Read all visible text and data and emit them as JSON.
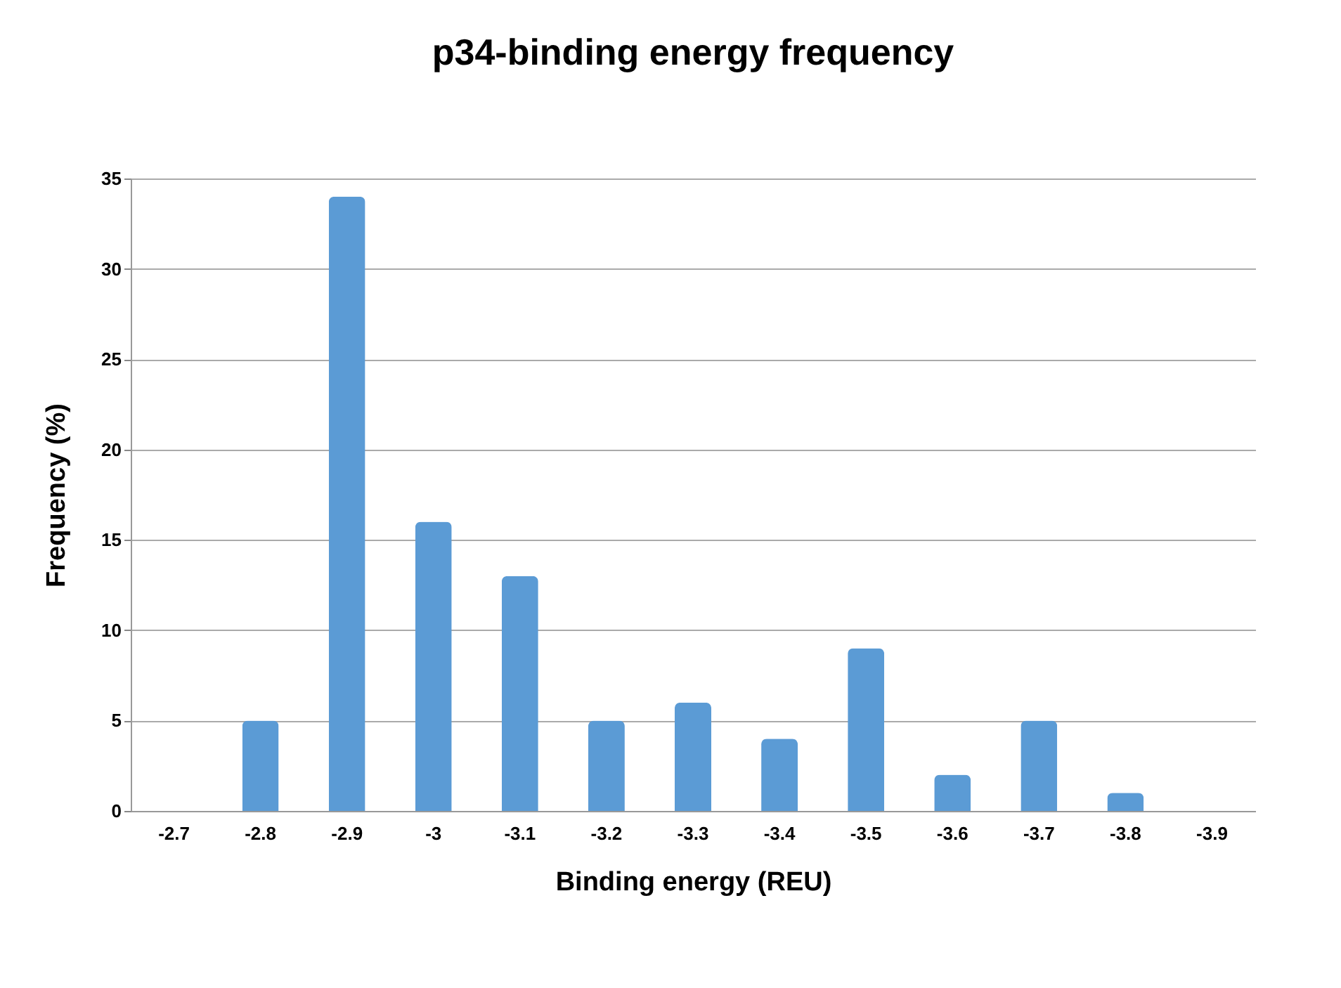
{
  "chart_data": {
    "type": "bar",
    "title": "p34-binding energy frequency",
    "xlabel": "Binding energy (REU)",
    "ylabel": "Frequency (%)",
    "categories": [
      "-2.7",
      "-2.8",
      "-2.9",
      "-3",
      "-3.1",
      "-3.2",
      "-3.3",
      "-3.4",
      "-3.5",
      "-3.6",
      "-3.7",
      "-3.8",
      "-3.9"
    ],
    "values": [
      0,
      5,
      34,
      16,
      13,
      5,
      6,
      4,
      9,
      2,
      5,
      1,
      0
    ],
    "color": "#5b9bd5",
    "ylim": [
      0,
      35
    ],
    "yticks": [
      0,
      5,
      10,
      15,
      20,
      25,
      30,
      35
    ],
    "grid": "y"
  }
}
